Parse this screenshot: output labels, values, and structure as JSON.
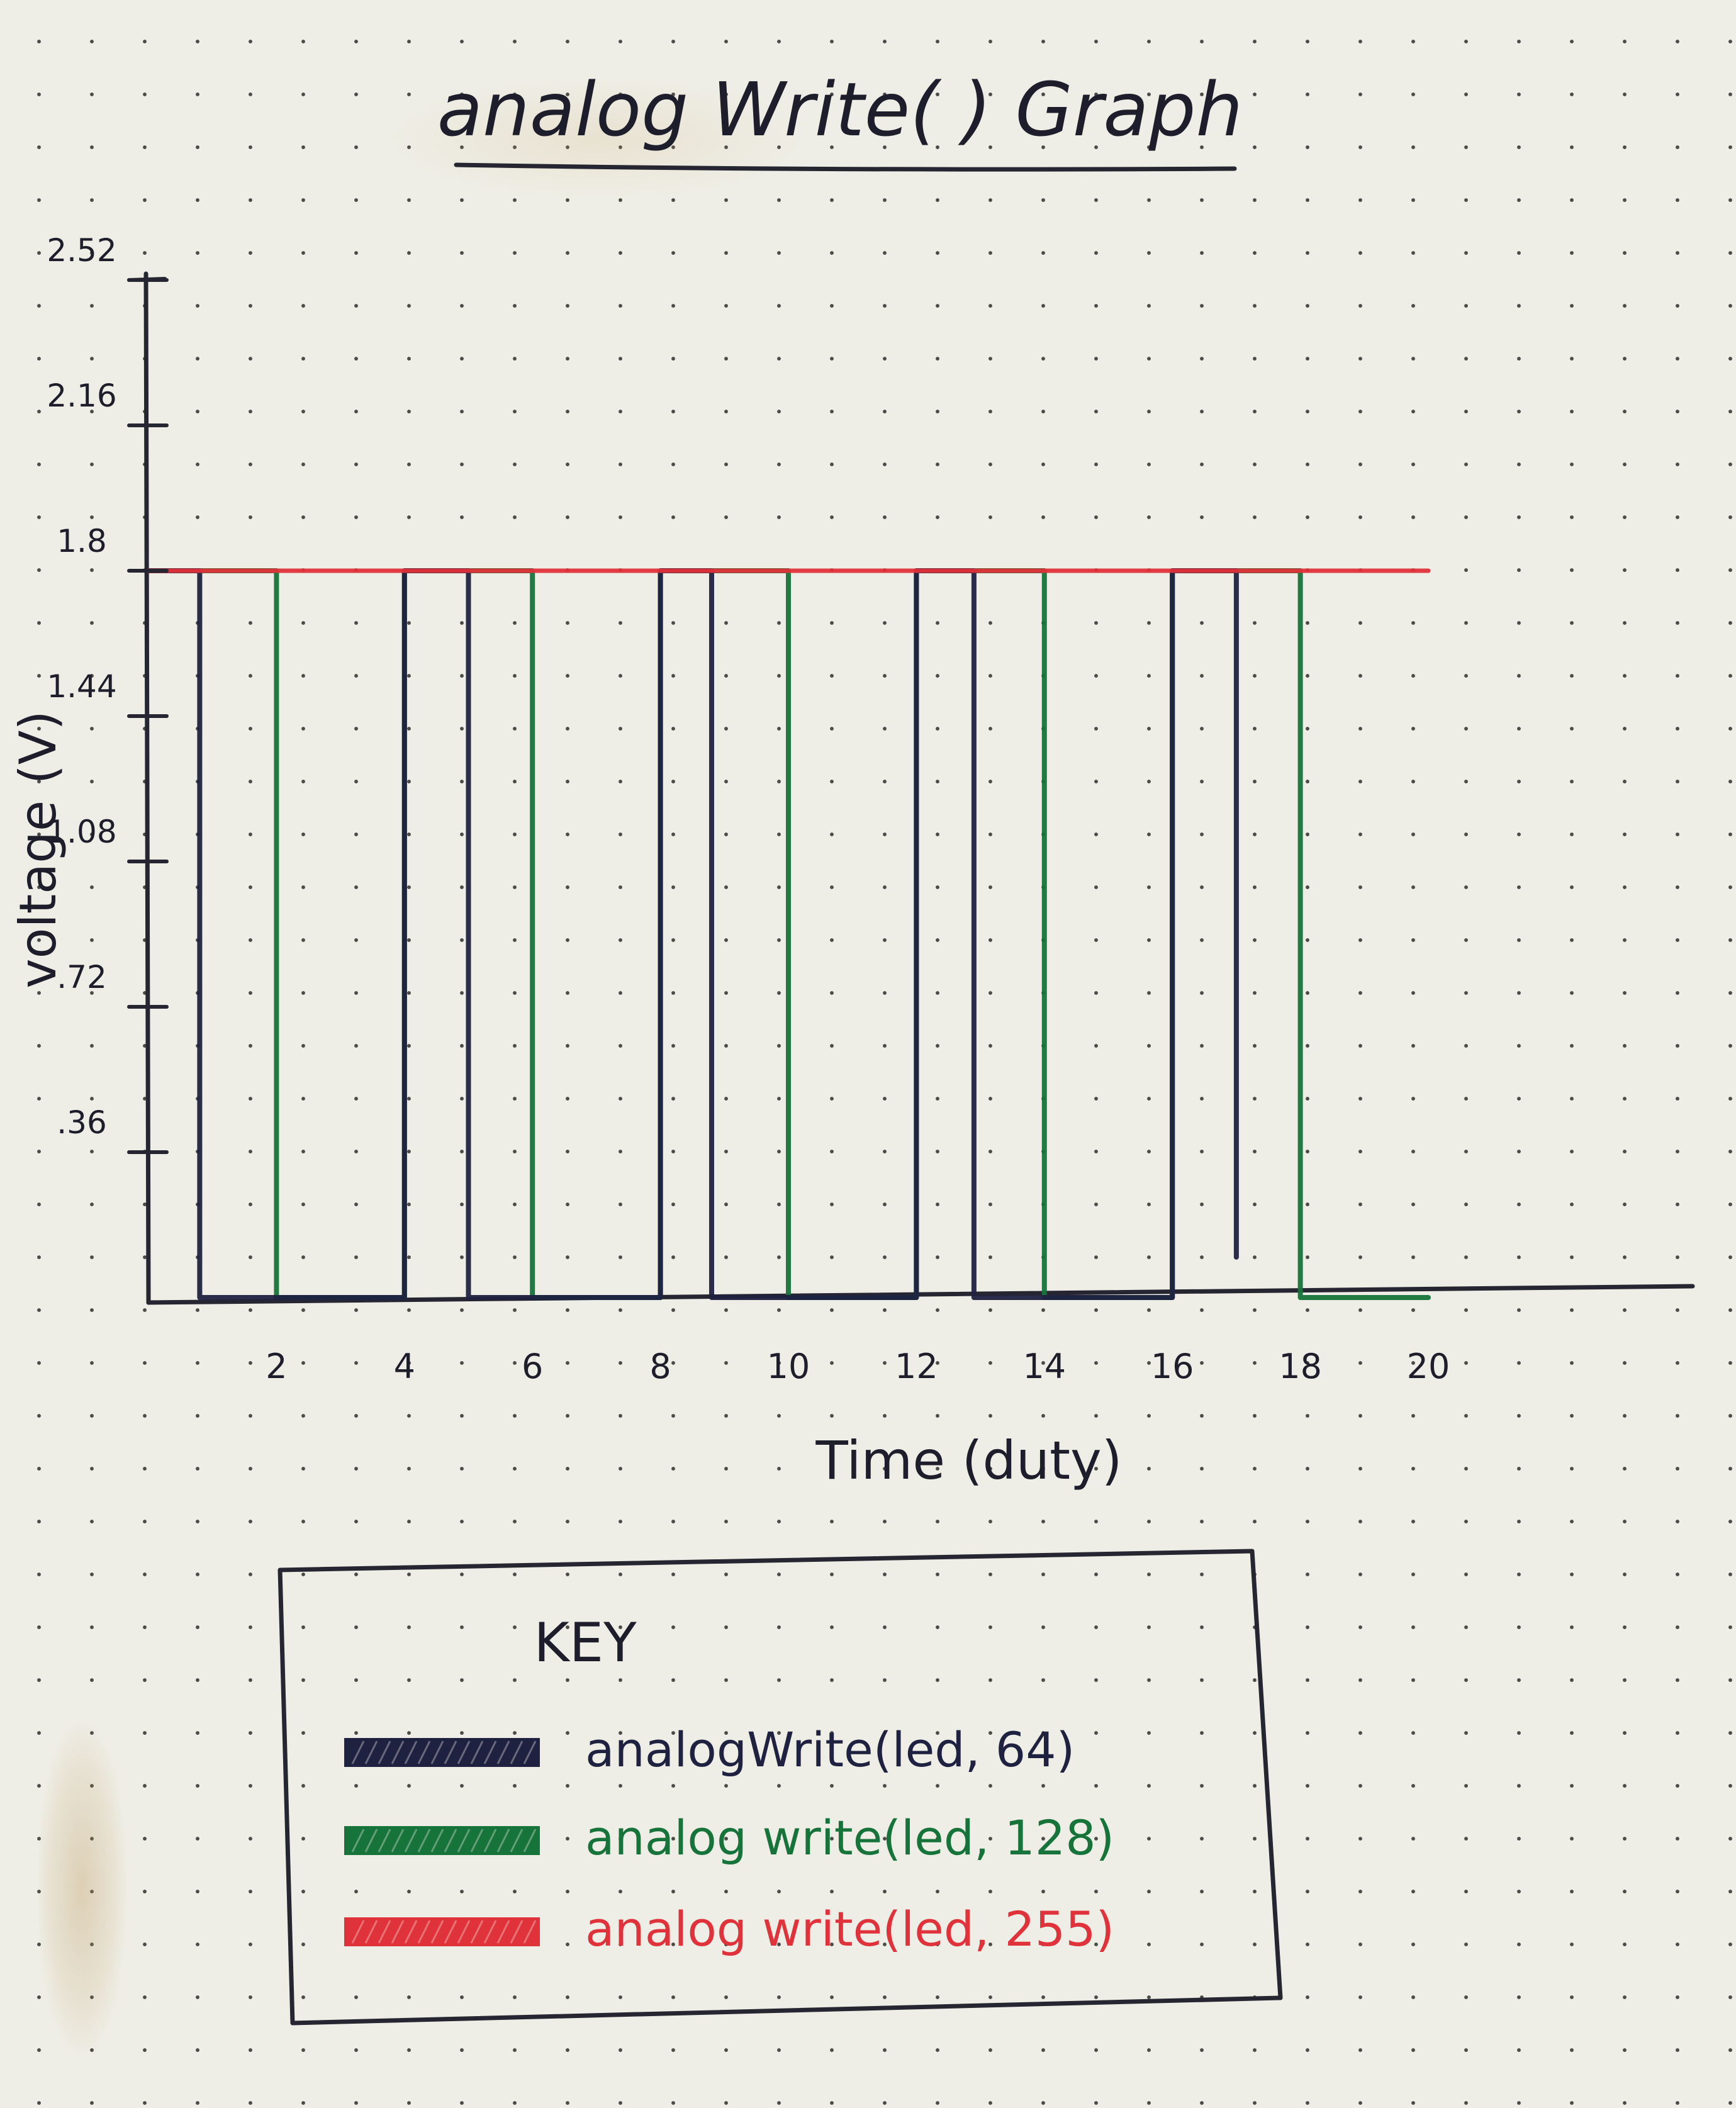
{
  "chart_data": {
    "type": "line",
    "title": "analog Write( ) Graph",
    "xlabel": "Time (duty)",
    "ylabel": "voltage (V)",
    "xlim": [
      0,
      20
    ],
    "ylim": [
      0,
      2.52
    ],
    "x_ticks": [
      "2",
      "4",
      "6",
      "8",
      "10",
      "12",
      "14",
      "16",
      "18",
      "20"
    ],
    "x_tick_values": [
      2,
      4,
      6,
      8,
      10,
      12,
      14,
      16,
      18,
      20
    ],
    "y_ticks": [
      "2.52",
      "2.16",
      "1.8",
      "1.44",
      "1.08",
      ".72",
      ".36"
    ],
    "y_tick_values": [
      2.52,
      2.16,
      1.8,
      1.44,
      1.08,
      0.72,
      0.36
    ],
    "grid": false,
    "series": [
      {
        "name": "analogWrite(led, 64)",
        "color": "#1f2140",
        "points": [
          [
            0,
            1.8
          ],
          [
            0.8,
            1.8
          ],
          [
            0.8,
            0
          ],
          [
            4,
            0
          ],
          [
            4,
            1.8
          ],
          [
            5,
            1.8
          ],
          [
            5,
            0
          ],
          [
            8,
            0
          ],
          [
            8,
            1.8
          ],
          [
            8.8,
            1.8
          ],
          [
            8.8,
            0
          ],
          [
            12,
            0
          ],
          [
            12,
            1.8
          ],
          [
            12.9,
            1.8
          ],
          [
            12.9,
            0
          ],
          [
            16,
            0
          ],
          [
            16,
            1.8
          ],
          [
            17,
            1.8
          ],
          [
            17,
            0.1
          ]
        ]
      },
      {
        "name": "analogWrite(led, 128)",
        "color": "#16733a",
        "points": [
          [
            0,
            1.8
          ],
          [
            2,
            1.8
          ],
          [
            2,
            0
          ],
          [
            4,
            0
          ],
          [
            4,
            1.8
          ],
          [
            6,
            1.8
          ],
          [
            6,
            0
          ],
          [
            8,
            0
          ],
          [
            8,
            1.8
          ],
          [
            10,
            1.8
          ],
          [
            10,
            0
          ],
          [
            12,
            0
          ],
          [
            12,
            1.8
          ],
          [
            14,
            1.8
          ],
          [
            14,
            0
          ],
          [
            16,
            0
          ],
          [
            16,
            1.8
          ],
          [
            18,
            1.8
          ],
          [
            18,
            0
          ],
          [
            20,
            0
          ]
        ]
      },
      {
        "name": "analogWrite(led, 255)",
        "color": "#e0323a",
        "points": [
          [
            0,
            1.8
          ],
          [
            20,
            1.8
          ]
        ]
      }
    ],
    "legend": {
      "title": "KEY",
      "placement": "bottom",
      "entries": [
        "analogWrite(led, 64)",
        "analog write(led, 128)",
        "analog write(led, 255)"
      ]
    }
  }
}
